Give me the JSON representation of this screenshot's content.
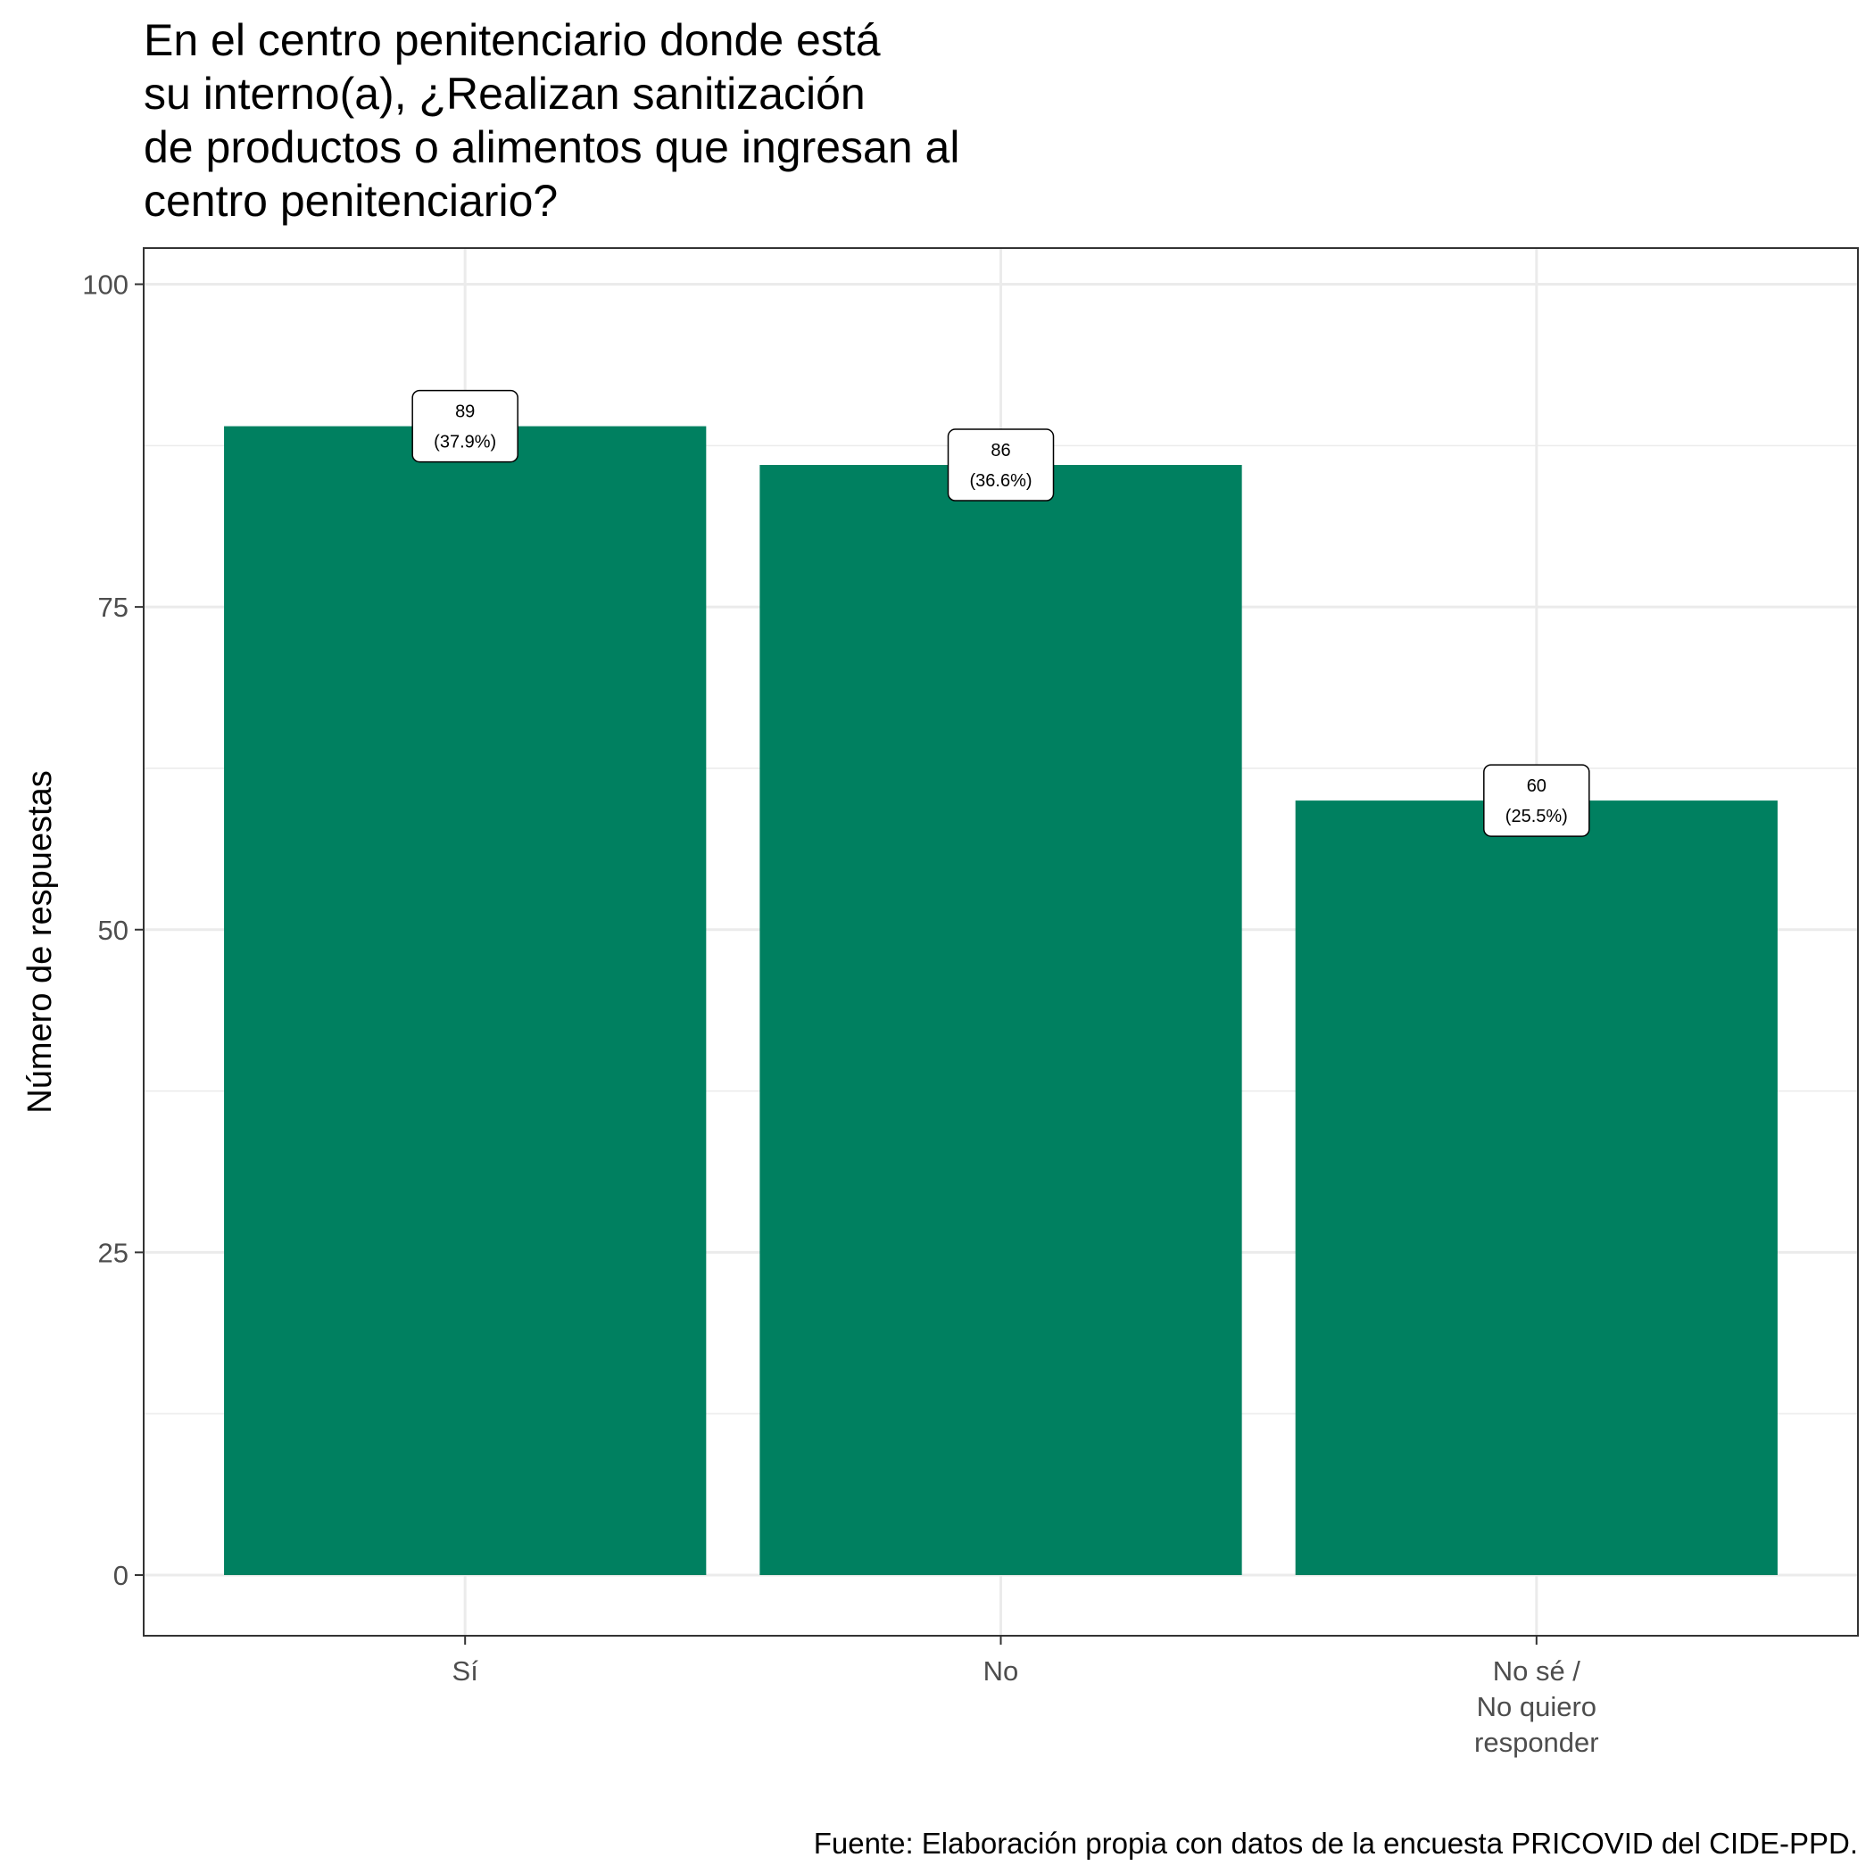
{
  "chart_data": {
    "type": "bar",
    "title_lines": [
      "En el centro penitenciario donde está",
      "su interno(a), ¿Realizan sanitización",
      "de productos o alimentos que ingresan al",
      "centro penitenciario?"
    ],
    "categories": [
      [
        "Sí"
      ],
      [
        "No"
      ],
      [
        "No sé /",
        "No quiero",
        "responder"
      ]
    ],
    "values": [
      89,
      86,
      60
    ],
    "labels": [
      [
        "89",
        "(37.9%)"
      ],
      [
        "86",
        "(36.6%)"
      ],
      [
        "60",
        "(25.5%)"
      ]
    ],
    "xlabel": "",
    "ylabel": "Número de respuestas",
    "ylim": [
      -4.7,
      102.8
    ],
    "yticks": [
      0,
      25,
      50,
      75,
      100
    ],
    "grid": true,
    "caption": "Fuente: Elaboración propia con datos de la encuesta PRICOVID del CIDE-PPD.",
    "colors": {
      "bar": "#008060",
      "grid": "#ebebeb",
      "panel_border": "#333333",
      "label_fill": "#ffffff",
      "label_border": "#000000"
    }
  }
}
